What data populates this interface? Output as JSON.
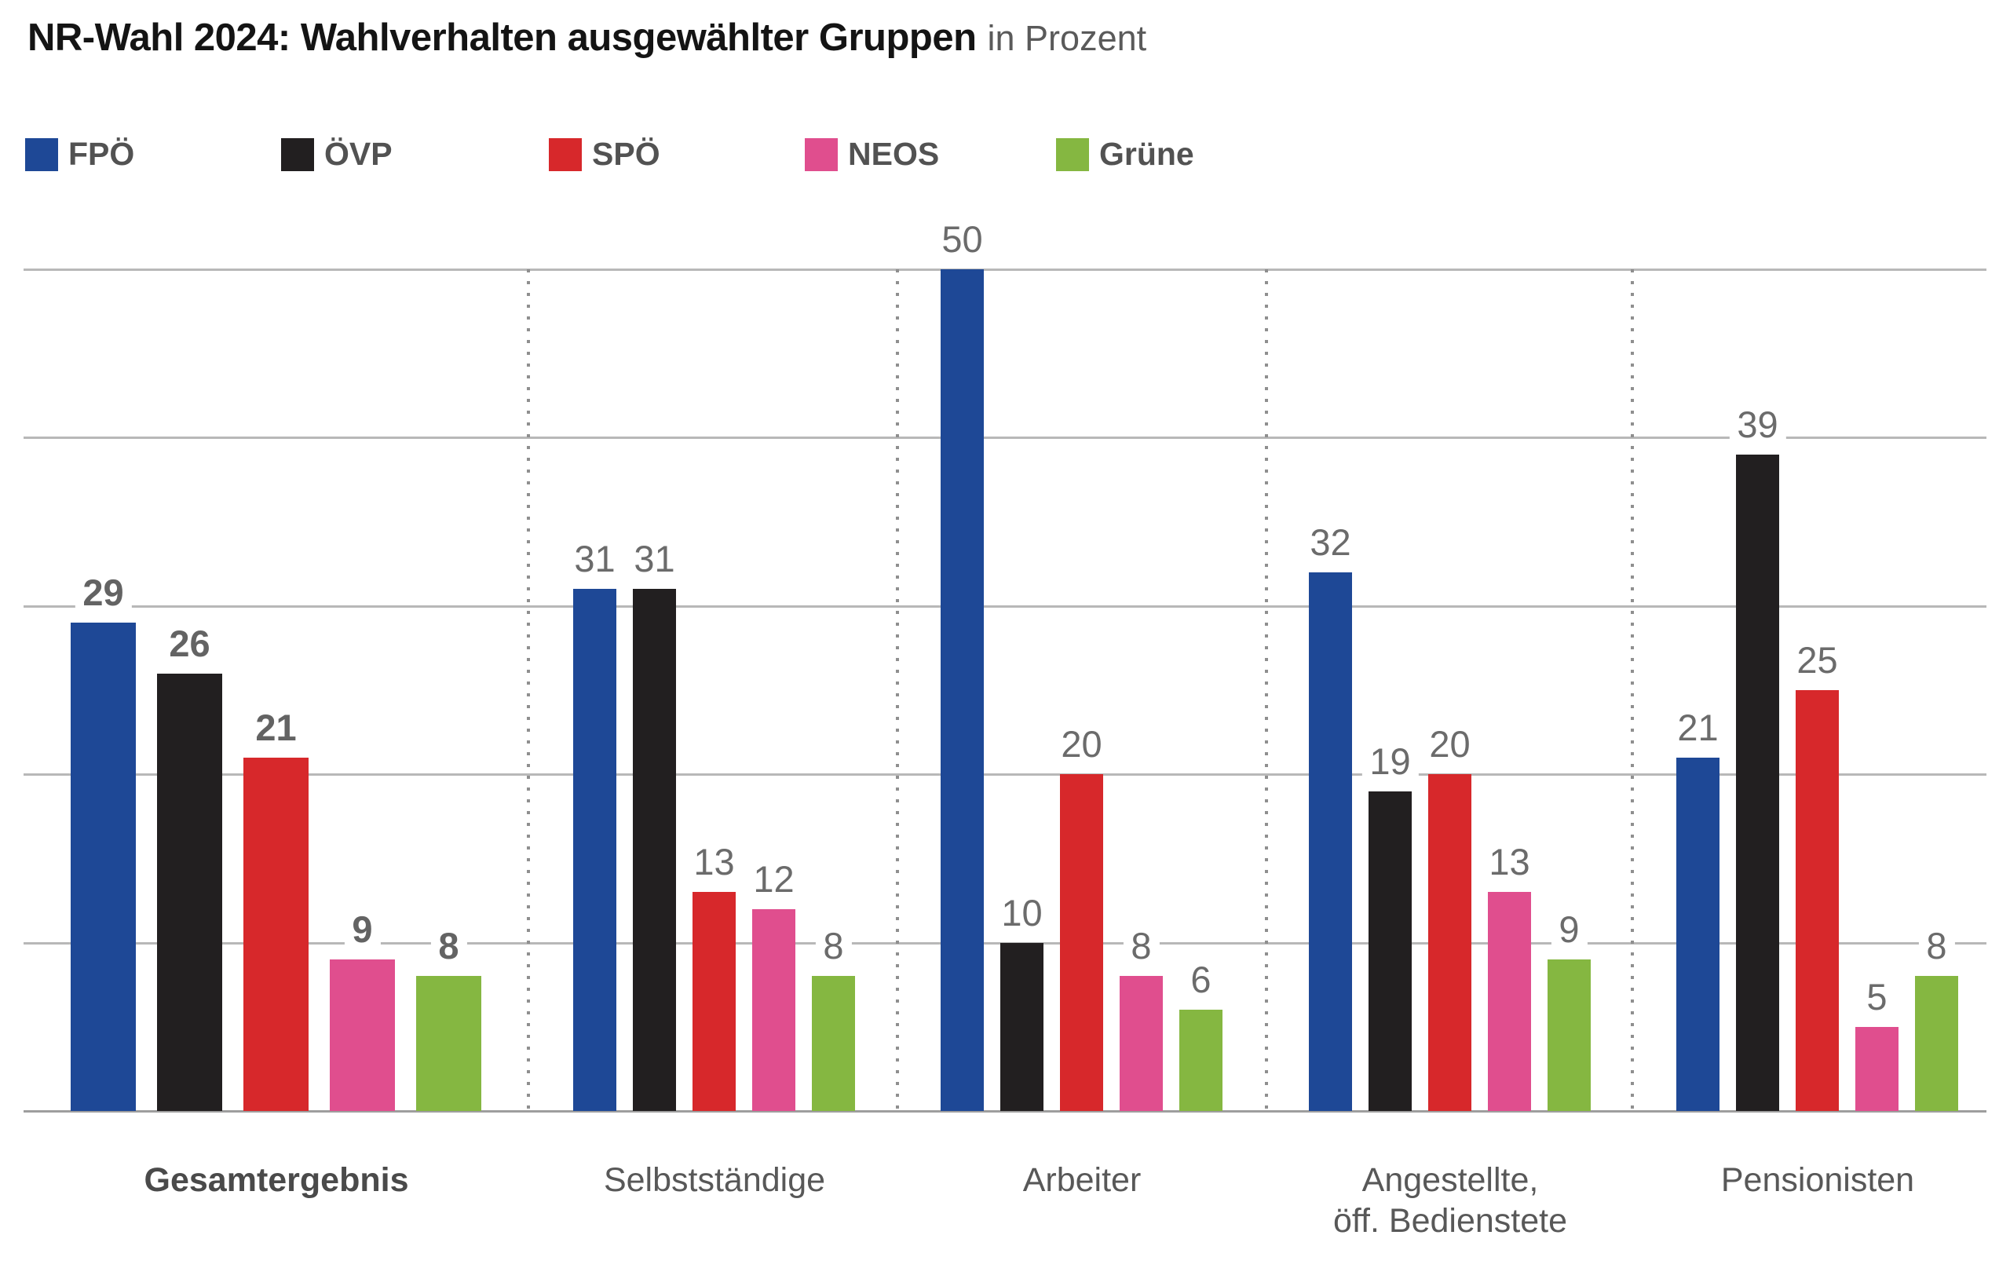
{
  "header": {
    "title": "NR-Wahl 2024: Wahlverhalten ausgewählter Gruppen",
    "subtitle": "in Prozent"
  },
  "chart_data": {
    "type": "bar",
    "title": "NR-Wahl 2024: Wahlverhalten ausgewählter Gruppen",
    "subtitle": "in Prozent",
    "unit": "percent",
    "categories": [
      "Gesamtergebnis",
      "Selbstständige",
      "Arbeiter",
      "Angestellte,\nöff. Bedienstete",
      "Pensionisten"
    ],
    "series": [
      {
        "name": "FPÖ",
        "color": "#1e4896",
        "values": [
          29,
          31,
          50,
          32,
          21
        ]
      },
      {
        "name": "ÖVP",
        "color": "#221f20",
        "values": [
          26,
          31,
          10,
          19,
          39
        ]
      },
      {
        "name": "SPÖ",
        "color": "#d7282b",
        "values": [
          21,
          13,
          20,
          20,
          25
        ]
      },
      {
        "name": "NEOS",
        "color": "#e04e8e",
        "values": [
          9,
          12,
          8,
          13,
          5
        ]
      },
      {
        "name": "Grüne",
        "color": "#85b741",
        "values": [
          8,
          8,
          6,
          9,
          8
        ]
      }
    ],
    "ylim": [
      0,
      50
    ],
    "gridline_step": 10,
    "grid": true,
    "y_axis_tick_labels": false,
    "value_labels": true,
    "legend_position": "top",
    "emphasized_category": "Gesamtergebnis",
    "style_colors": {
      "gridline": "#b8b8b8",
      "baseline": "#9e9e9e",
      "group_separator_dots": "#8f8f8f",
      "value_label": "#6b6b6b",
      "category_label": "#585858",
      "legend_text": "#525252",
      "title": "#141414",
      "subtitle": "#5a5a5a"
    }
  }
}
